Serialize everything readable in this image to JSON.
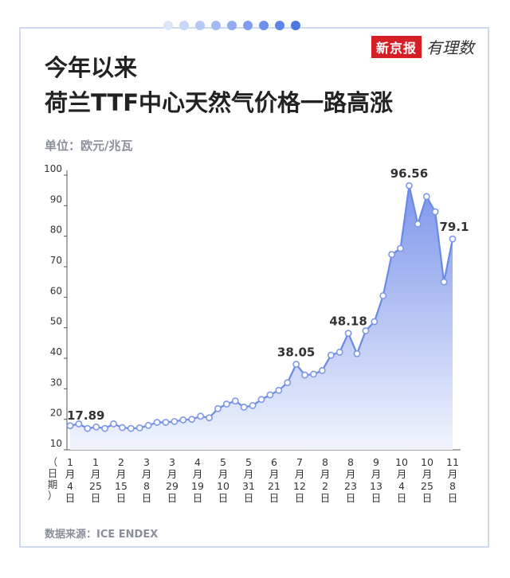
{
  "header": {
    "title_line1": "今年以来",
    "title_line2": "荷兰TTF中心天然气价格一路高涨",
    "logo_text": "新京报",
    "logo_script": "有理数",
    "dot_colors": [
      "#dce6fb",
      "#c8d7f8",
      "#b6c9f5",
      "#a3bbf2",
      "#91acf0",
      "#7f9eed",
      "#6e91ea",
      "#5d84e7",
      "#4d77e4"
    ]
  },
  "unit_label": "单位：欧元/兆瓦",
  "source_label": "数据来源：ICE ENDEX",
  "colors": {
    "line": "#6a8ae8",
    "fill_top": "#7d96ea",
    "fill_bottom": "#f1f4fd",
    "grid": "#cccccc",
    "point_stroke": "#7f98e6"
  },
  "chart_data": {
    "type": "area",
    "xlabel": "（日期）",
    "ylim": [
      10,
      100
    ],
    "yticks": [
      10,
      20,
      30,
      40,
      50,
      60,
      70,
      80,
      90,
      100
    ],
    "x_tick_labels": [
      [
        "1",
        "月",
        "4",
        "日"
      ],
      [
        "1",
        "月",
        "25",
        "日"
      ],
      [
        "2",
        "月",
        "15",
        "日"
      ],
      [
        "3",
        "月",
        "8",
        "日"
      ],
      [
        "3",
        "月",
        "29",
        "日"
      ],
      [
        "4",
        "月",
        "19",
        "日"
      ],
      [
        "5",
        "月",
        "10",
        "日"
      ],
      [
        "5",
        "月",
        "31",
        "日"
      ],
      [
        "6",
        "月",
        "21",
        "日"
      ],
      [
        "7",
        "月",
        "12",
        "日"
      ],
      [
        "8",
        "月",
        "2",
        "日"
      ],
      [
        "8",
        "月",
        "23",
        "日"
      ],
      [
        "9",
        "月",
        "13",
        "日"
      ],
      [
        "10",
        "月",
        "4",
        "日"
      ],
      [
        "10",
        "月",
        "25",
        "日"
      ],
      [
        "11",
        "月",
        "8",
        "日"
      ]
    ],
    "values": [
      17.89,
      18.5,
      17,
      17.5,
      17,
      18.5,
      17.3,
      17,
      17.2,
      18,
      19,
      19,
      19.3,
      19.8,
      20,
      21,
      20.5,
      23.5,
      25,
      26,
      24,
      24.5,
      26.5,
      28,
      29.5,
      32,
      38.05,
      34.5,
      34.8,
      36,
      41,
      42,
      48.18,
      41.5,
      49,
      52,
      60.5,
      74,
      76,
      96.56,
      84,
      93,
      88,
      65,
      79.1
    ],
    "labeled_points": [
      {
        "index": 0,
        "label": "17.89"
      },
      {
        "index": 26,
        "label": "38.05"
      },
      {
        "index": 32,
        "label": "48.18"
      },
      {
        "index": 39,
        "label": "96.56"
      },
      {
        "index": 44,
        "label": "79.1"
      }
    ]
  }
}
